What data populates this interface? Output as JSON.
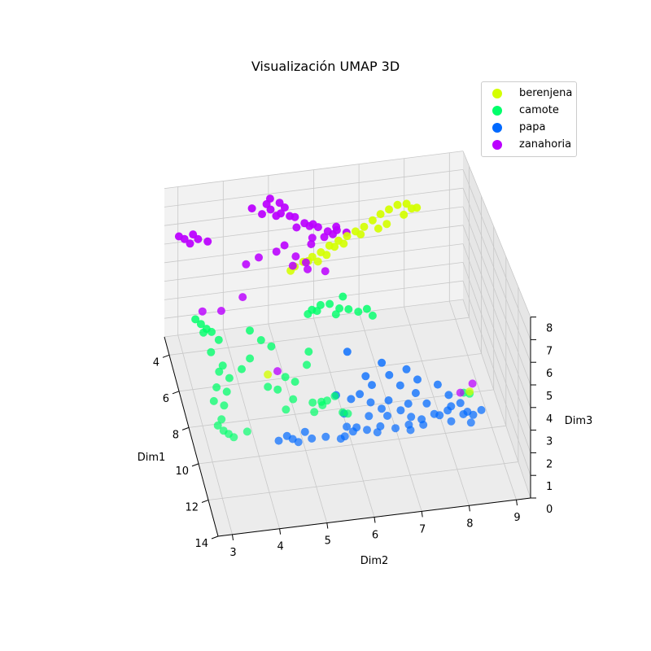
{
  "chart_data": {
    "type": "scatter",
    "projection": "3d",
    "title": "Visualización UMAP 3D",
    "xlabel": "Dim1",
    "ylabel": "Dim2",
    "zlabel": "Dim3",
    "xlim": [
      3,
      14
    ],
    "ylim": [
      2.7,
      9.3
    ],
    "zlim": [
      0,
      8
    ],
    "xticks": [
      4,
      6,
      8,
      10,
      12,
      14
    ],
    "yticks": [
      3,
      4,
      5,
      6,
      7,
      8,
      9
    ],
    "zticks": [
      0,
      1,
      2,
      3,
      4,
      5,
      6,
      7,
      8
    ],
    "grid": true,
    "legend_position": "top-right",
    "series": [
      {
        "name": "berenjena",
        "color": "#d4ff00",
        "points": [
          [
            3.4,
            7.8,
            5.9
          ],
          [
            3.5,
            7.6,
            5.8
          ],
          [
            3.6,
            7.4,
            5.7
          ],
          [
            3.8,
            7.2,
            5.6
          ],
          [
            3.9,
            7.0,
            5.4
          ],
          [
            4.0,
            6.8,
            5.3
          ],
          [
            4.1,
            6.6,
            5.2
          ],
          [
            4.2,
            6.4,
            5.1
          ],
          [
            4.2,
            6.2,
            4.9
          ],
          [
            4.3,
            6.0,
            4.7
          ],
          [
            4.4,
            5.8,
            4.6
          ],
          [
            4.4,
            5.6,
            4.4
          ],
          [
            4.5,
            5.4,
            4.3
          ],
          [
            4.6,
            5.3,
            4.2
          ],
          [
            3.4,
            8.0,
            5.9
          ],
          [
            3.6,
            8.2,
            5.8
          ],
          [
            3.7,
            7.9,
            5.6
          ],
          [
            3.9,
            7.5,
            5.4
          ],
          [
            4.1,
            6.9,
            5.2
          ],
          [
            4.3,
            6.5,
            5.0
          ],
          [
            4.3,
            6.3,
            4.9
          ],
          [
            4.5,
            6.1,
            4.7
          ],
          [
            4.6,
            5.9,
            4.5
          ],
          [
            4.5,
            5.7,
            4.5
          ],
          [
            3.5,
            8.1,
            5.7
          ],
          [
            4.0,
            7.3,
            5.3
          ],
          [
            7.2,
            4.5,
            1.4
          ],
          [
            8.6,
            8.7,
            0.6
          ]
        ]
      },
      {
        "name": "camote",
        "color": "#00ff6a",
        "points": [
          [
            5.6,
            3.1,
            3.2
          ],
          [
            5.8,
            3.2,
            3.1
          ],
          [
            6.0,
            3.3,
            3.0
          ],
          [
            6.1,
            3.4,
            2.9
          ],
          [
            6.3,
            3.2,
            3.1
          ],
          [
            6.6,
            3.5,
            2.9
          ],
          [
            6.9,
            3.3,
            2.6
          ],
          [
            7.4,
            3.5,
            2.3
          ],
          [
            7.6,
            3.4,
            2.2
          ],
          [
            7.8,
            3.6,
            2.0
          ],
          [
            8.0,
            3.3,
            1.8
          ],
          [
            8.2,
            3.5,
            1.7
          ],
          [
            8.4,
            3.2,
            1.5
          ],
          [
            8.6,
            3.4,
            1.4
          ],
          [
            9.0,
            3.3,
            1.1
          ],
          [
            9.2,
            3.2,
            1.0
          ],
          [
            9.4,
            3.3,
            0.9
          ],
          [
            9.5,
            3.4,
            0.8
          ],
          [
            9.6,
            3.5,
            0.7
          ],
          [
            9.5,
            3.8,
            0.8
          ],
          [
            7.3,
            4.1,
            2.4
          ],
          [
            6.8,
            4.4,
            2.8
          ],
          [
            7.0,
            4.6,
            2.6
          ],
          [
            8.9,
            4.7,
            1.1
          ],
          [
            8.5,
            4.9,
            1.2
          ],
          [
            8.0,
            5.0,
            1.6
          ],
          [
            7.6,
            5.3,
            2.0
          ],
          [
            6.1,
            5.5,
            3.2
          ],
          [
            6.0,
            5.6,
            3.3
          ],
          [
            5.9,
            5.8,
            3.4
          ],
          [
            5.9,
            6.0,
            3.4
          ],
          [
            6.0,
            6.2,
            3.2
          ],
          [
            6.0,
            6.4,
            3.1
          ],
          [
            6.1,
            6.6,
            3.0
          ],
          [
            6.0,
            6.8,
            3.0
          ],
          [
            6.2,
            6.9,
            2.8
          ],
          [
            6.1,
            5.7,
            3.3
          ],
          [
            6.2,
            6.1,
            3.1
          ],
          [
            8.8,
            5.6,
            1.2
          ],
          [
            8.7,
            5.3,
            1.1
          ],
          [
            8.6,
            5.5,
            1.0
          ],
          [
            8.5,
            5.8,
            1.1
          ],
          [
            9.0,
            5.3,
            0.9
          ],
          [
            9.1,
            5.9,
            0.8
          ],
          [
            9.2,
            6.0,
            0.8
          ],
          [
            8.8,
            5.5,
            1.0
          ],
          [
            7.1,
            5.4,
            2.2
          ],
          [
            5.8,
            6.3,
            3.6
          ],
          [
            8.6,
            8.7,
            0.5
          ],
          [
            8.4,
            8.6,
            0.4
          ],
          [
            7.9,
            4.8,
            1.8
          ],
          [
            8.2,
            4.6,
            1.5
          ],
          [
            8.1,
            4.4,
            1.6
          ],
          [
            7.5,
            3.9,
            2.1
          ],
          [
            6.4,
            4.2,
            3.0
          ]
        ]
      },
      {
        "name": "papa",
        "color": "#0069ff",
        "points": [
          [
            6.6,
            6.3,
            1.5
          ],
          [
            7.0,
            7.0,
            1.1
          ],
          [
            7.3,
            7.5,
            0.9
          ],
          [
            7.6,
            7.7,
            0.6
          ],
          [
            7.5,
            7.1,
            0.9
          ],
          [
            7.8,
            7.3,
            0.6
          ],
          [
            8.2,
            7.0,
            0.3
          ],
          [
            8.4,
            7.4,
            0.2
          ],
          [
            8.1,
            7.6,
            0.4
          ],
          [
            7.9,
            8.1,
            0.5
          ],
          [
            8.6,
            8.3,
            0.0
          ],
          [
            8.8,
            8.2,
            0.0
          ],
          [
            9.0,
            8.0,
            0.0
          ],
          [
            9.1,
            8.5,
            0.0
          ],
          [
            9.0,
            8.6,
            0.0
          ],
          [
            9.2,
            8.7,
            0.0
          ],
          [
            8.6,
            8.5,
            0.1
          ],
          [
            8.9,
            7.9,
            0.0
          ],
          [
            9.1,
            7.6,
            0.0
          ],
          [
            9.3,
            7.3,
            0.0
          ],
          [
            9.4,
            7.0,
            0.0
          ],
          [
            9.2,
            6.7,
            0.0
          ],
          [
            9.3,
            6.4,
            0.0
          ],
          [
            9.0,
            6.0,
            0.0
          ],
          [
            9.3,
            6.1,
            0.0
          ],
          [
            9.5,
            5.9,
            0.0
          ],
          [
            9.6,
            5.8,
            0.0
          ],
          [
            9.4,
            5.2,
            0.0
          ],
          [
            9.5,
            4.9,
            0.0
          ],
          [
            9.3,
            4.8,
            0.0
          ],
          [
            9.3,
            4.5,
            0.0
          ],
          [
            9.1,
            4.7,
            0.0
          ],
          [
            9.4,
            5.5,
            0.0
          ],
          [
            8.8,
            6.5,
            0.2
          ],
          [
            8.6,
            6.8,
            0.3
          ],
          [
            8.3,
            6.6,
            0.4
          ],
          [
            8.0,
            6.4,
            0.6
          ],
          [
            8.1,
            6.2,
            0.5
          ],
          [
            8.7,
            7.2,
            0.2
          ],
          [
            8.8,
            6.9,
            0.1
          ],
          [
            9.4,
            8.2,
            0.0
          ],
          [
            9.6,
            8.6,
            0.0
          ],
          [
            8.9,
            7.4,
            0.0
          ],
          [
            8.2,
            8.3,
            0.2
          ],
          [
            9.0,
            5.1,
            0.0
          ],
          [
            9.1,
            6.2,
            0.0
          ],
          [
            7.7,
            6.7,
            0.7
          ],
          [
            7.4,
            6.6,
            0.9
          ],
          [
            8.4,
            7.8,
            0.1
          ],
          [
            8.5,
            6.0,
            0.2
          ],
          [
            7.9,
            5.9,
            0.6
          ],
          [
            9.4,
            7.6,
            0.0
          ],
          [
            9.5,
            6.6,
            0.0
          ],
          [
            9.6,
            7.3,
            0.0
          ],
          [
            9.0,
            8.9,
            0.0
          ]
        ]
      },
      {
        "name": "zanahoria",
        "color": "#bb00ff",
        "points": [
          [
            3.2,
            3.0,
            5.5
          ],
          [
            3.4,
            3.1,
            5.5
          ],
          [
            3.6,
            3.2,
            5.4
          ],
          [
            3.3,
            3.3,
            5.6
          ],
          [
            3.4,
            3.4,
            5.4
          ],
          [
            3.5,
            3.6,
            5.3
          ],
          [
            3.3,
            4.6,
            6.6
          ],
          [
            3.5,
            4.8,
            6.4
          ],
          [
            3.4,
            5.0,
            6.5
          ],
          [
            3.6,
            5.1,
            6.3
          ],
          [
            3.5,
            5.3,
            6.6
          ],
          [
            3.7,
            5.5,
            6.2
          ],
          [
            3.5,
            4.9,
            6.9
          ],
          [
            3.3,
            5.0,
            7.0
          ],
          [
            3.4,
            5.2,
            6.8
          ],
          [
            3.6,
            5.2,
            6.4
          ],
          [
            3.6,
            5.4,
            6.2
          ],
          [
            3.8,
            5.7,
            5.9
          ],
          [
            3.7,
            5.9,
            5.7
          ],
          [
            3.9,
            5.8,
            5.8
          ],
          [
            3.8,
            6.0,
            5.6
          ],
          [
            3.9,
            6.2,
            5.4
          ],
          [
            3.9,
            6.4,
            5.4
          ],
          [
            4.0,
            6.6,
            5.3
          ],
          [
            4.0,
            6.3,
            5.3
          ],
          [
            4.2,
            5.8,
            5.1
          ],
          [
            4.1,
            6.1,
            5.3
          ],
          [
            3.8,
            6.4,
            5.5
          ],
          [
            4.0,
            5.5,
            5.9
          ],
          [
            4.3,
            5.2,
            5.3
          ],
          [
            4.5,
            5.0,
            5.2
          ],
          [
            4.6,
            4.6,
            5.1
          ],
          [
            4.8,
            4.3,
            5.0
          ],
          [
            5.2,
            5.6,
            4.7
          ],
          [
            5.0,
            5.3,
            4.8
          ],
          [
            4.7,
            5.4,
            5.0
          ],
          [
            4.9,
            5.6,
            4.8
          ],
          [
            5.1,
            6.0,
            4.4
          ],
          [
            5.9,
            4.1,
            4.3
          ],
          [
            6.2,
            3.6,
            4.0
          ],
          [
            8.6,
            8.5,
            0.6
          ],
          [
            8.3,
            8.8,
            0.7
          ],
          [
            6.1,
            3.2,
            4.0
          ],
          [
            7.3,
            4.7,
            1.6
          ],
          [
            4.4,
            5.8,
            5.6
          ]
        ]
      }
    ]
  }
}
